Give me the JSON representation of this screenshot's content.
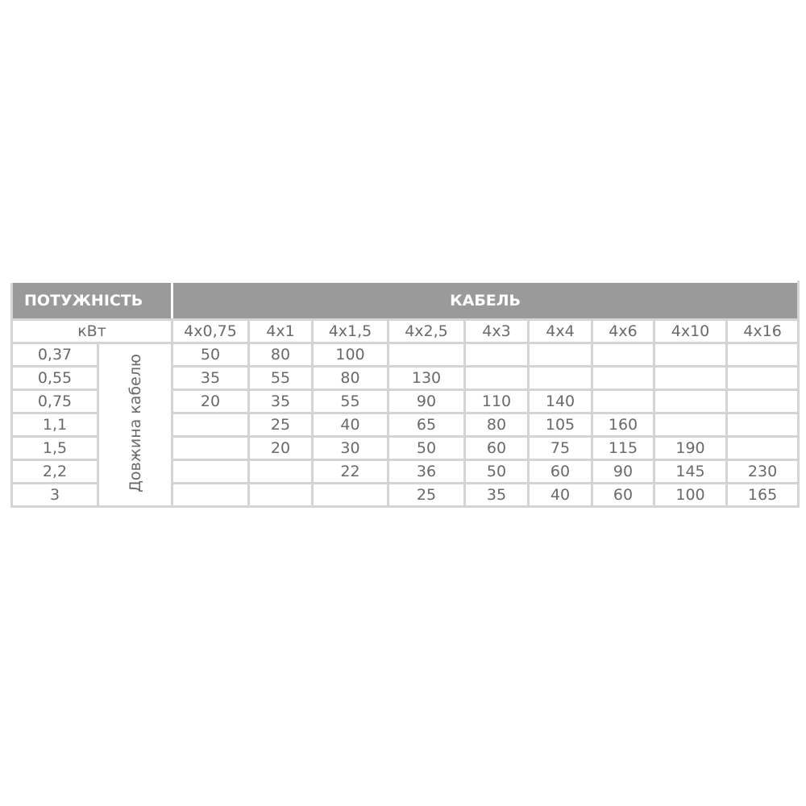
{
  "header": {
    "power": "ПОТУЖНІСТЬ",
    "cable": "КАБЕЛЬ"
  },
  "unit": "кВт",
  "length_label": "Довжина кабелю",
  "columns": [
    "4x0,75",
    "4x1",
    "4x1,5",
    "4x2,5",
    "4x3",
    "4x4",
    "4x6",
    "4x10",
    "4x16"
  ],
  "rows": [
    {
      "power": "0,37",
      "values": [
        "50",
        "80",
        "100",
        "",
        "",
        "",
        "",
        "",
        ""
      ]
    },
    {
      "power": "0,55",
      "values": [
        "35",
        "55",
        "80",
        "130",
        "",
        "",
        "",
        "",
        ""
      ]
    },
    {
      "power": "0,75",
      "values": [
        "20",
        "35",
        "55",
        "90",
        "110",
        "140",
        "",
        "",
        ""
      ]
    },
    {
      "power": "1,1",
      "values": [
        "",
        "25",
        "40",
        "65",
        "80",
        "105",
        "160",
        "",
        ""
      ]
    },
    {
      "power": "1,5",
      "values": [
        "",
        "20",
        "30",
        "50",
        "60",
        "75",
        "115",
        "190",
        ""
      ]
    },
    {
      "power": "2,2",
      "values": [
        "",
        "",
        "22",
        "36",
        "50",
        "60",
        "90",
        "145",
        "230"
      ]
    },
    {
      "power": "3",
      "values": [
        "",
        "",
        "",
        "25",
        "35",
        "40",
        "60",
        "100",
        "165"
      ]
    }
  ]
}
